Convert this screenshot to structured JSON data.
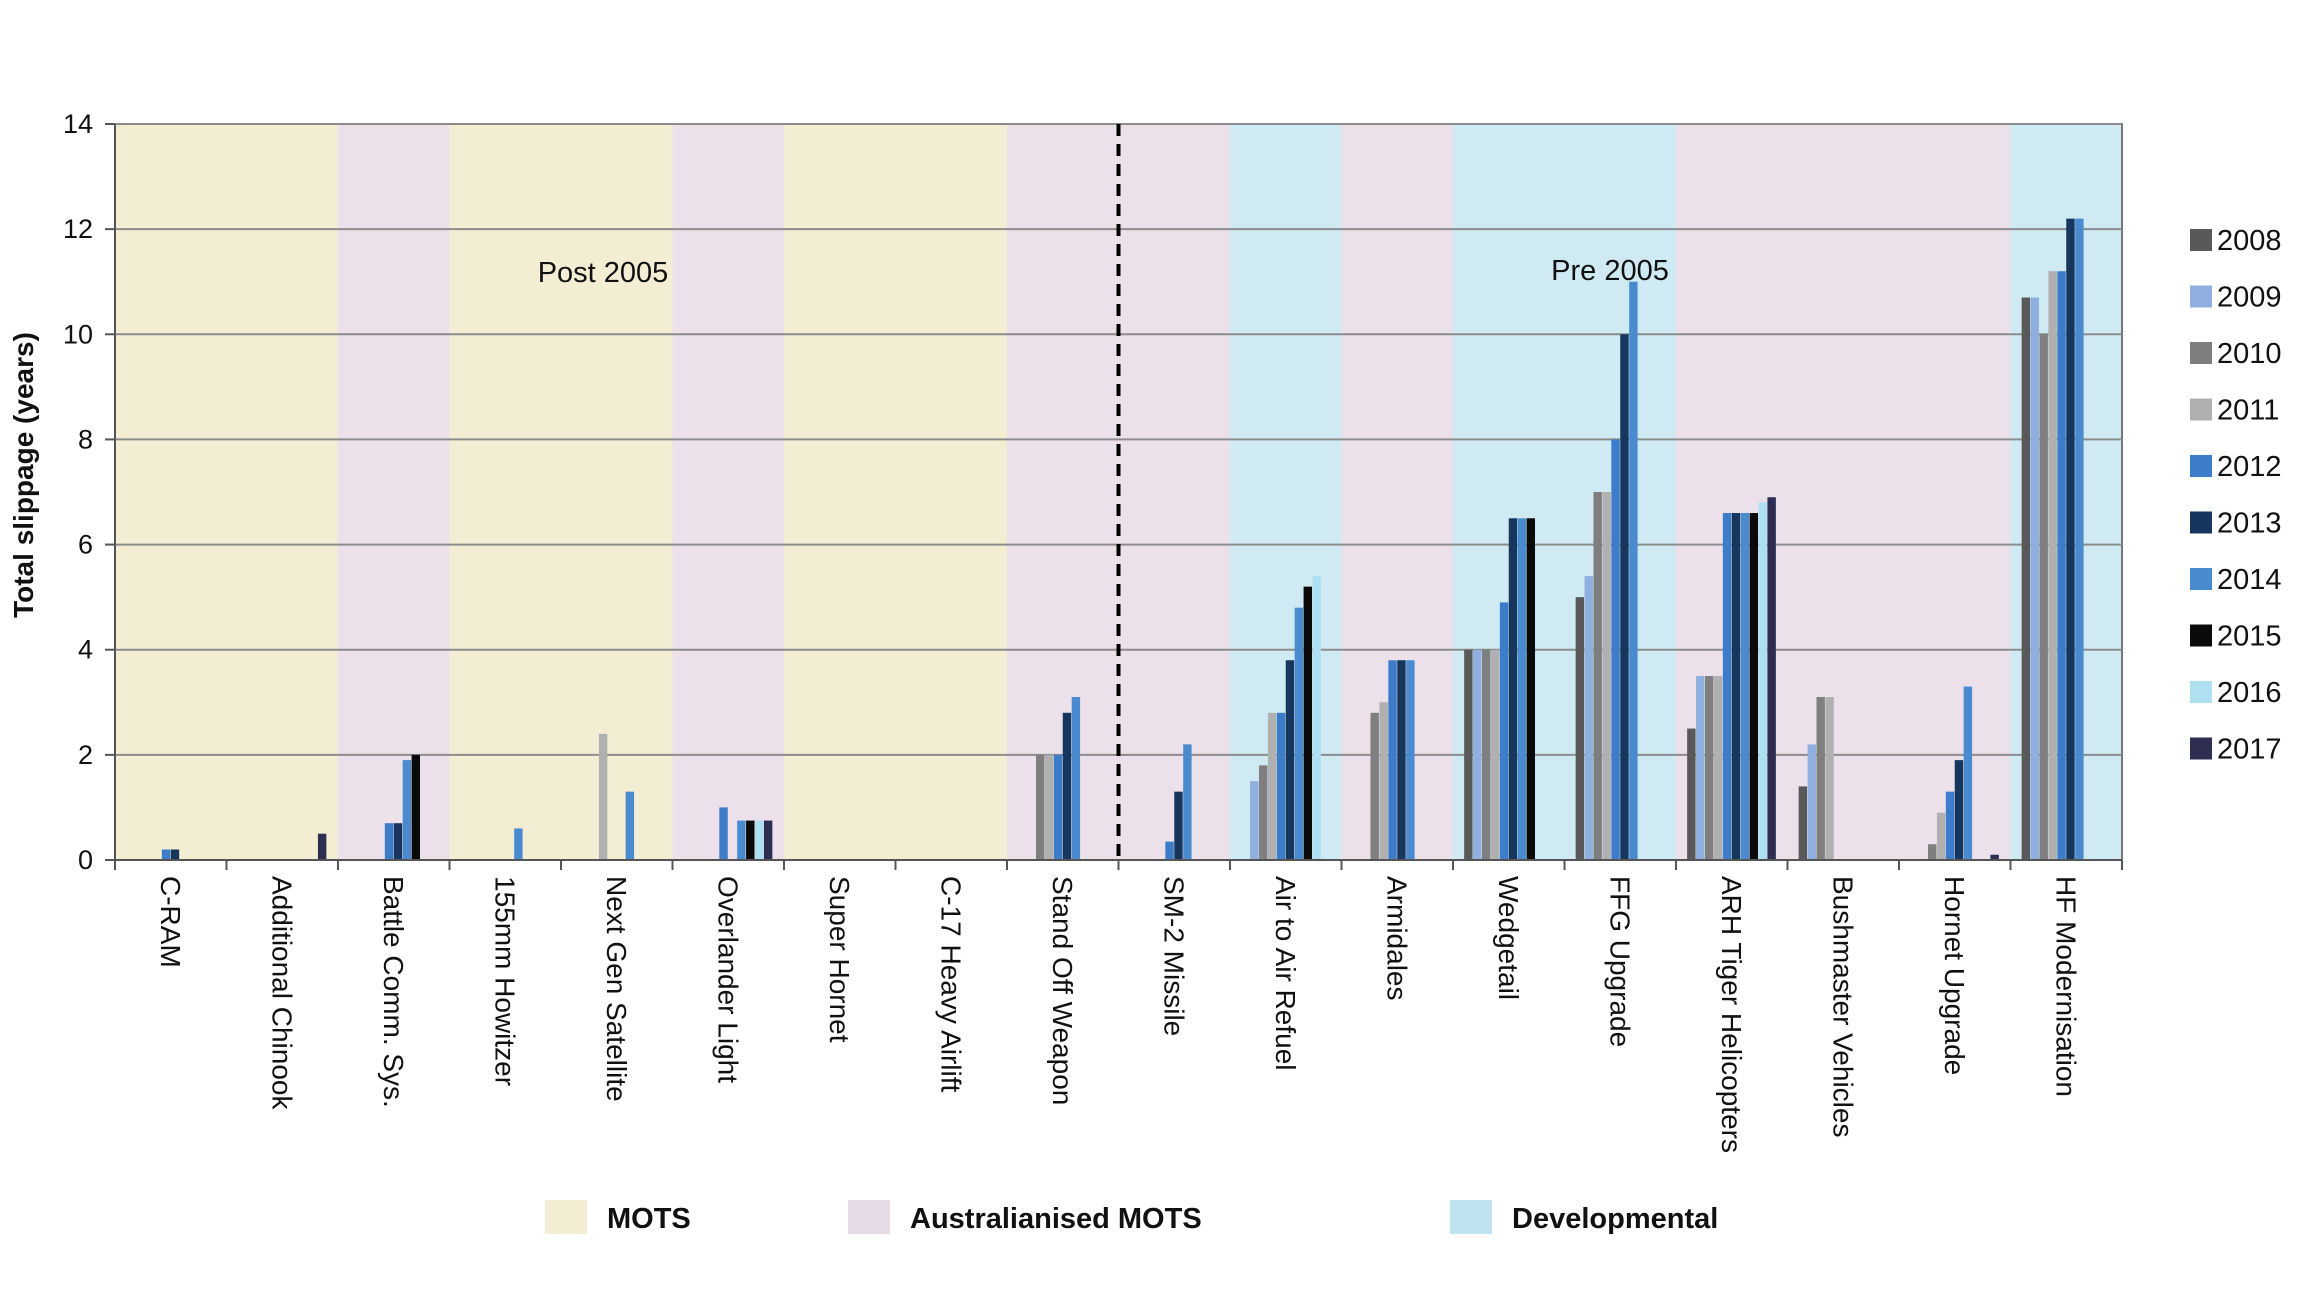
{
  "chart_data": {
    "type": "bar",
    "title": "",
    "xlabel": "",
    "ylabel": "Total slippage (years)",
    "ylim": [
      0,
      14
    ],
    "yticks": [
      "0",
      "2",
      "4",
      "6",
      "8",
      "10",
      "12",
      "14"
    ],
    "categories": [
      "C-RAM",
      "Additional Chinook",
      "Battle Comm. Sys.",
      "155mm Howitzer",
      "Next Gen Satellite",
      "Overlander Light",
      "Super Hornet",
      "C-17 Heavy Airlift",
      "Stand Off Weapon",
      "SM-2 Missile",
      "Air to Air Refuel",
      "Armidales",
      "Wedgetail",
      "FFG Upgrade",
      "ARH Tiger Helicopters",
      "Bushmaster Vehicles",
      "Hornet Upgrade",
      "HF Modernisation"
    ],
    "category_types": [
      "MOTS",
      "MOTS",
      "Australianised MOTS",
      "MOTS",
      "MOTS",
      "Australianised MOTS",
      "MOTS",
      "MOTS",
      "Australianised MOTS",
      "Australianised MOTS",
      "Developmental",
      "Australianised MOTS",
      "Developmental",
      "Developmental",
      "Australianised MOTS",
      "Australianised MOTS",
      "Australianised MOTS",
      "Developmental"
    ],
    "band_colors": {
      "MOTS": "#f3eed3",
      "Australianised MOTS": "#ece1ea",
      "Developmental": "#cfeaf3"
    },
    "band_legend": [
      {
        "key": "MOTS",
        "label": "MOTS",
        "color": "#f3eed3"
      },
      {
        "key": "Australianised MOTS",
        "label": "Australianised MOTS",
        "color": "#e8dbe8"
      },
      {
        "key": "Developmental",
        "label": "Developmental",
        "color": "#bfe4f0"
      }
    ],
    "era_labels": {
      "left": "Post 2005",
      "right": "Pre 2005"
    },
    "era_divider_after_index": 8,
    "legend_position": "right",
    "series": [
      {
        "name": "2008",
        "color": "#595959",
        "values": [
          0,
          0,
          0,
          0,
          0,
          0,
          0,
          0,
          0,
          0,
          0,
          0,
          4.0,
          5.0,
          2.5,
          1.4,
          0,
          10.7
        ]
      },
      {
        "name": "2009",
        "color": "#8fb0de",
        "values": [
          0,
          0,
          0,
          0,
          0,
          0,
          0,
          0,
          0,
          0,
          1.5,
          0,
          4.0,
          5.4,
          3.5,
          2.2,
          0,
          10.7
        ]
      },
      {
        "name": "2010",
        "color": "#7f7f7f",
        "values": [
          0,
          0,
          0,
          0,
          0,
          0,
          0,
          0,
          2.0,
          0,
          1.8,
          2.8,
          4.0,
          7.0,
          3.5,
          3.1,
          0.3,
          10.0
        ]
      },
      {
        "name": "2011",
        "color": "#b0b0b0",
        "values": [
          0,
          0,
          0,
          0,
          2.4,
          0,
          0,
          0,
          2.0,
          0,
          2.8,
          3.0,
          4.0,
          7.0,
          3.5,
          3.1,
          0.9,
          11.2
        ]
      },
      {
        "name": "2012",
        "color": "#3d7cc8",
        "values": [
          0.2,
          0,
          0.7,
          0,
          0,
          1.0,
          0,
          0,
          2.0,
          0.35,
          2.8,
          3.8,
          4.9,
          8.0,
          6.6,
          0,
          1.3,
          11.2
        ]
      },
      {
        "name": "2013",
        "color": "#17365d",
        "values": [
          0.2,
          0,
          0.7,
          0,
          0,
          0,
          0,
          0,
          2.8,
          1.3,
          3.8,
          3.8,
          6.5,
          10.0,
          6.6,
          0,
          1.9,
          12.2
        ]
      },
      {
        "name": "2014",
        "color": "#4a8bd0",
        "values": [
          0,
          0,
          1.9,
          0.6,
          1.3,
          0.75,
          0,
          0,
          3.1,
          2.2,
          4.8,
          3.8,
          6.5,
          11.0,
          6.6,
          0,
          3.3,
          12.2
        ]
      },
      {
        "name": "2015",
        "color": "#0a0a0a",
        "values": [
          0,
          0,
          2.0,
          0,
          0,
          0.75,
          0,
          0,
          0,
          0,
          5.2,
          0,
          6.5,
          0,
          6.6,
          0,
          0,
          0
        ]
      },
      {
        "name": "2016",
        "color": "#aee0f2",
        "values": [
          0,
          0,
          0,
          0,
          0,
          0.75,
          0,
          0,
          0,
          0,
          5.4,
          0,
          0,
          0,
          6.8,
          0,
          0,
          0
        ]
      },
      {
        "name": "2017",
        "color": "#2e2e52",
        "values": [
          0,
          0.5,
          0,
          0,
          0,
          0.75,
          0,
          0,
          0,
          0,
          0,
          0,
          0,
          0,
          6.9,
          0,
          0.1,
          0
        ]
      }
    ]
  }
}
